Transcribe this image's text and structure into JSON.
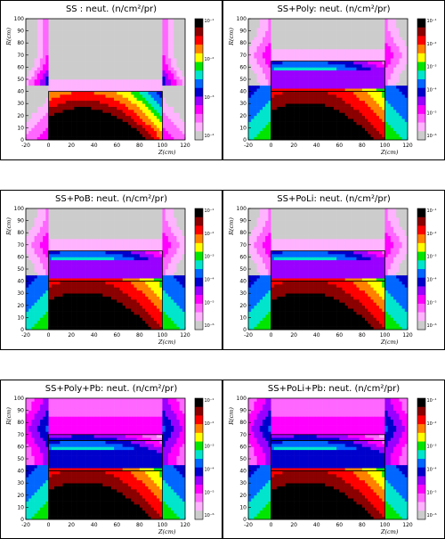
{
  "chart_data": [
    {
      "type": "heatmap",
      "title": "SS : neut. (n/cm²/pr)",
      "xlabel": "Z(cm)",
      "ylabel": "R(cm)",
      "xlim": [
        -20,
        120
      ],
      "ylim": [
        0,
        100
      ],
      "xticks": [
        "-20",
        "0",
        "20",
        "40",
        "60",
        "80",
        "100",
        "120"
      ],
      "yticks": [
        "0",
        "10",
        "20",
        "30",
        "40",
        "50",
        "60",
        "70",
        "80",
        "90",
        "100"
      ],
      "colorbar_labels": [
        "10⁻¹",
        "10⁻²",
        "10⁻³",
        "10⁻⁴"
      ],
      "colorbar_decades": [
        -1,
        -4
      ],
      "shield_layers": [
        {
          "z": [
            0,
            100
          ],
          "r": [
            0,
            40
          ]
        }
      ],
      "levels": {
        "peak_exp": -0.3,
        "center_z": 30,
        "bottom_exp": -4.5,
        "corner_exp": -3.3,
        "mid_exp": -2.9,
        "floor_exp": -4.5
      }
    },
    {
      "type": "heatmap",
      "title": "SS+Poly: neut. (n/cm²/pr)",
      "xlabel": "Z(cm)",
      "ylabel": "R(cm)",
      "xlim": [
        -20,
        120
      ],
      "ylim": [
        0,
        100
      ],
      "xticks": [
        "-20",
        "0",
        "20",
        "40",
        "60",
        "80",
        "100",
        "120"
      ],
      "yticks": [
        "0",
        "10",
        "20",
        "30",
        "40",
        "50",
        "60",
        "70",
        "80",
        "90",
        "100"
      ],
      "colorbar_labels": [
        "10⁻¹",
        "10⁻²",
        "10⁻³",
        "10⁻⁴",
        "10⁻⁵",
        "10⁻⁶"
      ],
      "colorbar_decades": [
        -1,
        -6
      ],
      "shield_layers": [
        {
          "z": [
            0,
            100
          ],
          "r": [
            0,
            40
          ]
        },
        {
          "z": [
            0,
            100
          ],
          "r": [
            40,
            65
          ]
        }
      ],
      "levels": {
        "peak_exp": -0.3,
        "center_z": 30,
        "bottom_exp": -4.7,
        "corner_exp": -3.0,
        "mid_exp": -4.6,
        "floor_exp": -6.5
      }
    },
    {
      "type": "heatmap",
      "title": "SS+PoB: neut. (n/cm²/pr)",
      "xlabel": "Z(cm)",
      "ylabel": "R(cm)",
      "xlim": [
        -20,
        120
      ],
      "ylim": [
        0,
        100
      ],
      "xticks": [
        "-20",
        "0",
        "20",
        "40",
        "60",
        "80",
        "100",
        "120"
      ],
      "yticks": [
        "0",
        "10",
        "20",
        "30",
        "40",
        "50",
        "60",
        "70",
        "80",
        "90",
        "100"
      ],
      "colorbar_labels": [
        "10⁻¹",
        "10⁻²",
        "10⁻³",
        "10⁻⁴",
        "10⁻⁵",
        "10⁻⁶"
      ],
      "colorbar_decades": [
        -1,
        -6
      ],
      "shield_layers": [
        {
          "z": [
            0,
            100
          ],
          "r": [
            0,
            40
          ]
        },
        {
          "z": [
            0,
            100
          ],
          "r": [
            40,
            65
          ]
        }
      ],
      "levels": {
        "peak_exp": -0.3,
        "center_z": 30,
        "bottom_exp": -4.7,
        "corner_exp": -3.0,
        "mid_exp": -4.6,
        "floor_exp": -6.5
      }
    },
    {
      "type": "heatmap",
      "title": "SS+PoLi: neut. (n/cm²/pr)",
      "xlabel": "Z(cm)",
      "ylabel": "R(cm)",
      "xlim": [
        -20,
        120
      ],
      "ylim": [
        0,
        100
      ],
      "xticks": [
        "-20",
        "0",
        "20",
        "40",
        "60",
        "80",
        "100",
        "120"
      ],
      "yticks": [
        "0",
        "10",
        "20",
        "30",
        "40",
        "50",
        "60",
        "70",
        "80",
        "90",
        "100"
      ],
      "colorbar_labels": [
        "10⁻¹",
        "10⁻²",
        "10⁻³",
        "10⁻⁴",
        "10⁻⁵",
        "10⁻⁶"
      ],
      "colorbar_decades": [
        -1,
        -6
      ],
      "shield_layers": [
        {
          "z": [
            0,
            100
          ],
          "r": [
            0,
            40
          ]
        },
        {
          "z": [
            0,
            100
          ],
          "r": [
            40,
            65
          ]
        }
      ],
      "levels": {
        "peak_exp": -0.3,
        "center_z": 30,
        "bottom_exp": -4.7,
        "corner_exp": -3.0,
        "mid_exp": -4.6,
        "floor_exp": -6.5
      }
    },
    {
      "type": "heatmap",
      "title": "SS+Poly+Pb: neut. (n/cm²/pr)",
      "xlabel": "Z(cm)",
      "ylabel": "R(cm)",
      "xlim": [
        -20,
        120
      ],
      "ylim": [
        0,
        100
      ],
      "xticks": [
        "-20",
        "0",
        "20",
        "40",
        "60",
        "80",
        "100",
        "120"
      ],
      "yticks": [
        "0",
        "10",
        "20",
        "30",
        "40",
        "50",
        "60",
        "70",
        "80",
        "90",
        "100"
      ],
      "colorbar_labels": [
        "10⁻¹",
        "10⁻²",
        "10⁻³",
        "10⁻⁴",
        "10⁻⁵",
        "10⁻⁶"
      ],
      "colorbar_decades": [
        -1,
        -6
      ],
      "shield_layers": [
        {
          "z": [
            0,
            100
          ],
          "r": [
            0,
            40
          ]
        },
        {
          "z": [
            0,
            100
          ],
          "r": [
            40,
            65
          ]
        },
        {
          "z": [
            0,
            100
          ],
          "r": [
            65,
            70
          ]
        }
      ],
      "levels": {
        "peak_exp": -0.3,
        "center_z": 30,
        "bottom_exp": -4.7,
        "corner_exp": -3.0,
        "mid_exp": -4.3,
        "floor_exp": -5.6
      }
    },
    {
      "type": "heatmap",
      "title": "SS+PoLi+Pb: neut. (n/cm²/pr)",
      "xlabel": "Z(cm)",
      "ylabel": "R(cm)",
      "xlim": [
        -20,
        120
      ],
      "ylim": [
        0,
        100
      ],
      "xticks": [
        "-20",
        "0",
        "20",
        "40",
        "60",
        "80",
        "100",
        "120"
      ],
      "yticks": [
        "0",
        "10",
        "20",
        "30",
        "40",
        "50",
        "60",
        "70",
        "80",
        "90",
        "100"
      ],
      "colorbar_labels": [
        "10⁻¹",
        "10⁻²",
        "10⁻³",
        "10⁻⁴",
        "10⁻⁵",
        "10⁻⁶"
      ],
      "colorbar_decades": [
        -1,
        -6
      ],
      "shield_layers": [
        {
          "z": [
            0,
            100
          ],
          "r": [
            0,
            40
          ]
        },
        {
          "z": [
            0,
            100
          ],
          "r": [
            40,
            65
          ]
        },
        {
          "z": [
            0,
            100
          ],
          "r": [
            65,
            70
          ]
        }
      ],
      "levels": {
        "peak_exp": -0.3,
        "center_z": 30,
        "bottom_exp": -4.7,
        "corner_exp": -3.0,
        "mid_exp": -4.3,
        "floor_exp": -5.6
      }
    }
  ],
  "palette": [
    "#000000",
    "#8b0000",
    "#ff0000",
    "#ff8000",
    "#ffff00",
    "#00e600",
    "#00e5cc",
    "#0066ff",
    "#0000cc",
    "#9900ff",
    "#ff00ff",
    "#ff66ff",
    "#ffb3ff",
    "#cccccc"
  ]
}
